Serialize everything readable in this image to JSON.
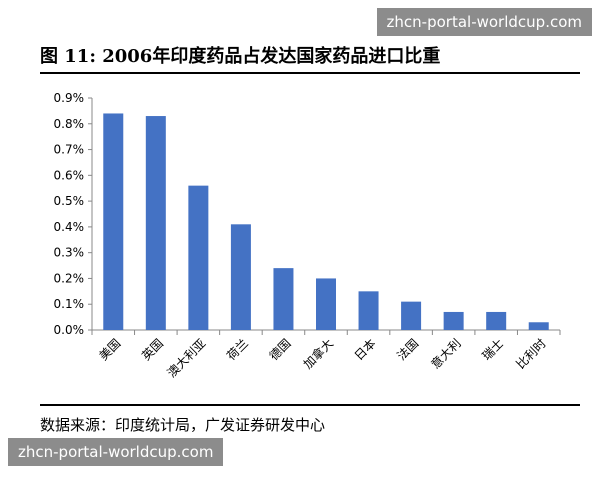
{
  "title": "图 11: 2006年印度药品占发达国家药品进口比重",
  "source": "数据来源：印度统计局，广发证券研发中心",
  "watermark": "zhcn-portal-worldcup.com",
  "chart_data": {
    "type": "bar",
    "categories": [
      "美国",
      "英国",
      "澳大利亚",
      "荷兰",
      "德国",
      "加拿大",
      "日本",
      "法国",
      "意大利",
      "瑞士",
      "比利时"
    ],
    "values": [
      0.84,
      0.83,
      0.56,
      0.41,
      0.24,
      0.2,
      0.15,
      0.11,
      0.07,
      0.07,
      0.03
    ],
    "ylim": [
      0,
      0.9
    ],
    "yticks": [
      "0.0%",
      "0.1%",
      "0.2%",
      "0.3%",
      "0.4%",
      "0.5%",
      "0.6%",
      "0.7%",
      "0.8%",
      "0.9%"
    ],
    "bar_color": "#4472C4",
    "grid": false,
    "legend": "none"
  }
}
